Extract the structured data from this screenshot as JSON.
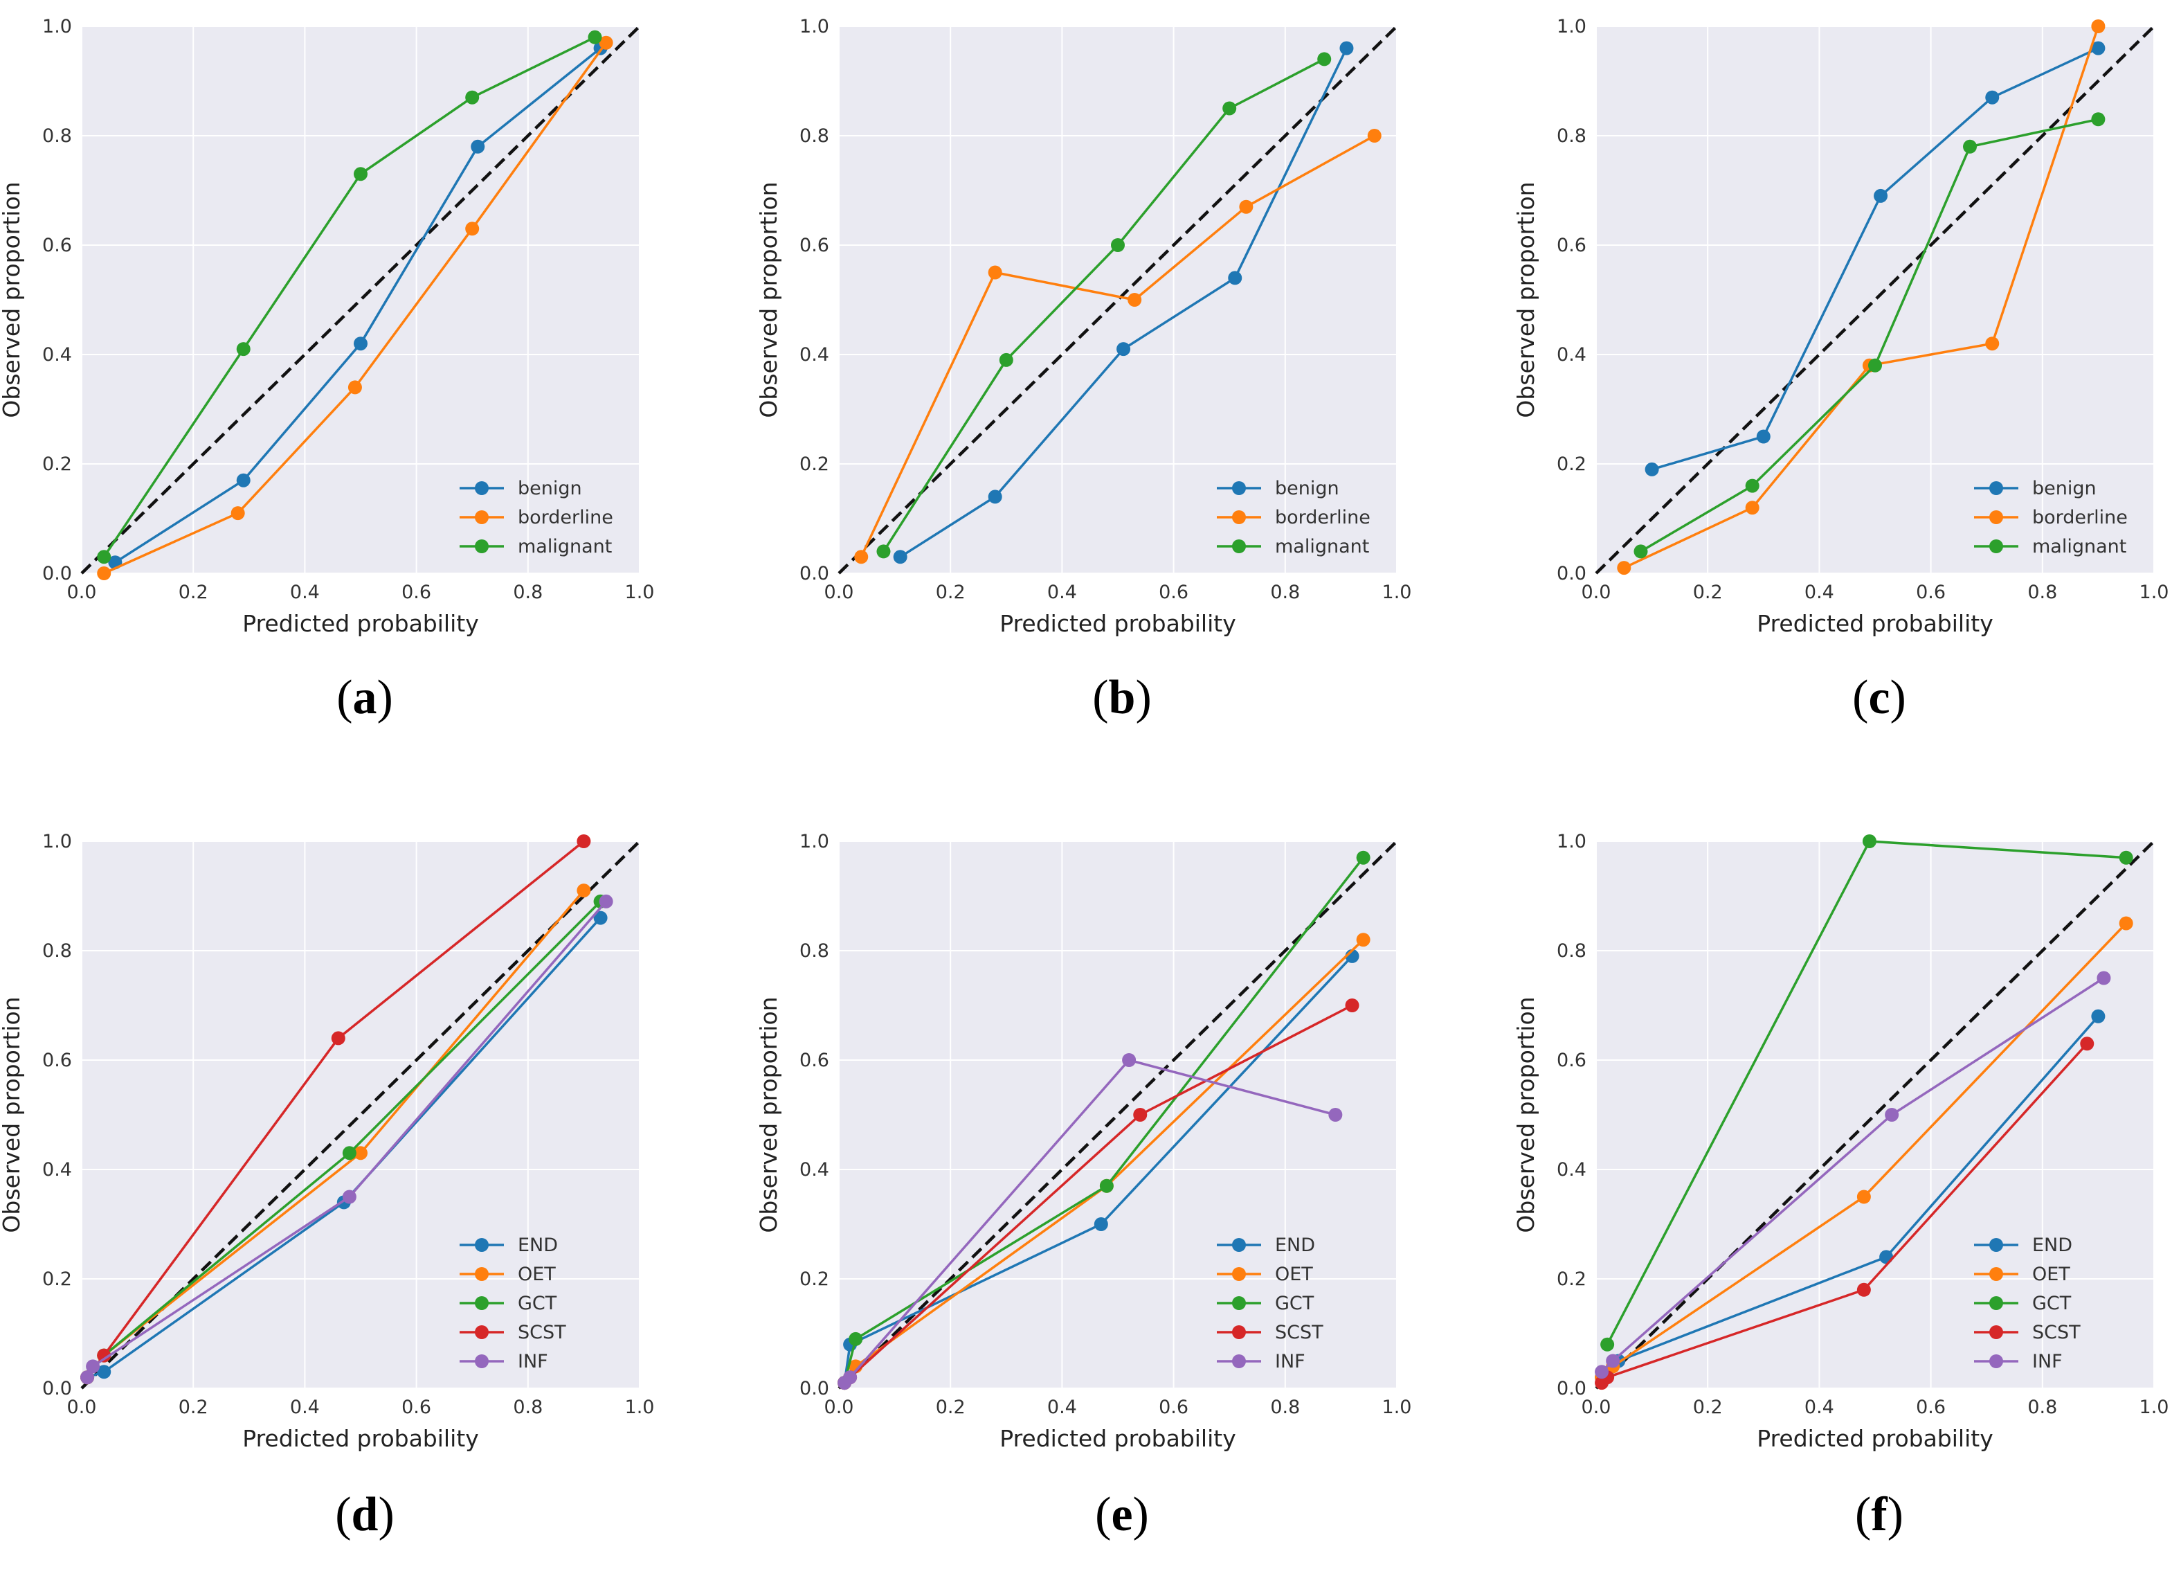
{
  "chart_data": [
    {
      "type": "line",
      "panel_label": "(a)",
      "panel_letter": "a",
      "xlabel": "Predicted probability",
      "ylabel": "Observed proportion",
      "xlim": [
        0,
        1
      ],
      "ylim": [
        0,
        1
      ],
      "xticks": [
        "0.0",
        "0.2",
        "0.4",
        "0.6",
        "0.8",
        "1.0"
      ],
      "yticks": [
        "0.0",
        "0.2",
        "0.4",
        "0.6",
        "0.8",
        "1.0"
      ],
      "reference_line": "perfect calibration (dashed diagonal)",
      "legend_position": "lower-right",
      "series": [
        {
          "name": "benign",
          "color": "#1f77b4",
          "x": [
            0.06,
            0.29,
            0.5,
            0.71,
            0.93
          ],
          "y": [
            0.02,
            0.17,
            0.42,
            0.78,
            0.96
          ]
        },
        {
          "name": "borderline",
          "color": "#ff7f0e",
          "x": [
            0.04,
            0.28,
            0.49,
            0.7,
            0.94
          ],
          "y": [
            0.0,
            0.11,
            0.34,
            0.63,
            0.97
          ]
        },
        {
          "name": "malignant",
          "color": "#2ca02c",
          "x": [
            0.04,
            0.29,
            0.5,
            0.7,
            0.92
          ],
          "y": [
            0.03,
            0.41,
            0.73,
            0.87,
            0.98
          ]
        }
      ]
    },
    {
      "type": "line",
      "panel_label": "(b)",
      "panel_letter": "b",
      "xlabel": "Predicted probability",
      "ylabel": "Observed proportion",
      "xlim": [
        0,
        1
      ],
      "ylim": [
        0,
        1
      ],
      "xticks": [
        "0.0",
        "0.2",
        "0.4",
        "0.6",
        "0.8",
        "1.0"
      ],
      "yticks": [
        "0.0",
        "0.2",
        "0.4",
        "0.6",
        "0.8",
        "1.0"
      ],
      "reference_line": "perfect calibration (dashed diagonal)",
      "legend_position": "lower-right",
      "series": [
        {
          "name": "benign",
          "color": "#1f77b4",
          "x": [
            0.11,
            0.28,
            0.51,
            0.71,
            0.91
          ],
          "y": [
            0.03,
            0.14,
            0.41,
            0.54,
            0.96
          ]
        },
        {
          "name": "borderline",
          "color": "#ff7f0e",
          "x": [
            0.04,
            0.28,
            0.53,
            0.73,
            0.96
          ],
          "y": [
            0.03,
            0.55,
            0.5,
            0.67,
            0.8
          ]
        },
        {
          "name": "malignant",
          "color": "#2ca02c",
          "x": [
            0.08,
            0.3,
            0.5,
            0.7,
            0.87
          ],
          "y": [
            0.04,
            0.39,
            0.6,
            0.85,
            0.94
          ]
        }
      ]
    },
    {
      "type": "line",
      "panel_label": "(c)",
      "panel_letter": "c",
      "xlabel": "Predicted probability",
      "ylabel": "Observed proportion",
      "xlim": [
        0,
        1
      ],
      "ylim": [
        0,
        1
      ],
      "xticks": [
        "0.0",
        "0.2",
        "0.4",
        "0.6",
        "0.8",
        "1.0"
      ],
      "yticks": [
        "0.0",
        "0.2",
        "0.4",
        "0.6",
        "0.8",
        "1.0"
      ],
      "reference_line": "perfect calibration (dashed diagonal)",
      "legend_position": "lower-right",
      "series": [
        {
          "name": "benign",
          "color": "#1f77b4",
          "x": [
            0.1,
            0.3,
            0.51,
            0.71,
            0.9
          ],
          "y": [
            0.19,
            0.25,
            0.69,
            0.87,
            0.96
          ]
        },
        {
          "name": "borderline",
          "color": "#ff7f0e",
          "x": [
            0.05,
            0.28,
            0.49,
            0.71,
            0.9
          ],
          "y": [
            0.01,
            0.12,
            0.38,
            0.42,
            1.0
          ]
        },
        {
          "name": "malignant",
          "color": "#2ca02c",
          "x": [
            0.08,
            0.28,
            0.5,
            0.67,
            0.9
          ],
          "y": [
            0.04,
            0.16,
            0.38,
            0.78,
            0.83
          ]
        }
      ]
    },
    {
      "type": "line",
      "panel_label": "(d)",
      "panel_letter": "d",
      "xlabel": "Predicted probability",
      "ylabel": "Observed proportion",
      "xlim": [
        0,
        1
      ],
      "ylim": [
        0,
        1
      ],
      "xticks": [
        "0.0",
        "0.2",
        "0.4",
        "0.6",
        "0.8",
        "1.0"
      ],
      "yticks": [
        "0.0",
        "0.2",
        "0.4",
        "0.6",
        "0.8",
        "1.0"
      ],
      "reference_line": "perfect calibration (dashed diagonal)",
      "legend_position": "lower-right",
      "series": [
        {
          "name": "END",
          "color": "#1f77b4",
          "x": [
            0.01,
            0.04,
            0.47,
            0.93
          ],
          "y": [
            0.02,
            0.03,
            0.34,
            0.86
          ]
        },
        {
          "name": "OET",
          "color": "#ff7f0e",
          "x": [
            0.01,
            0.04,
            0.5,
            0.9
          ],
          "y": [
            0.02,
            0.06,
            0.43,
            0.91
          ]
        },
        {
          "name": "GCT",
          "color": "#2ca02c",
          "x": [
            0.01,
            0.04,
            0.48,
            0.93
          ],
          "y": [
            0.02,
            0.06,
            0.43,
            0.89
          ]
        },
        {
          "name": "SCST",
          "color": "#d62728",
          "x": [
            0.01,
            0.04,
            0.46,
            0.9
          ],
          "y": [
            0.02,
            0.06,
            0.64,
            1.0
          ]
        },
        {
          "name": "INF",
          "color": "#9467bd",
          "x": [
            0.01,
            0.02,
            0.48,
            0.94
          ],
          "y": [
            0.02,
            0.04,
            0.35,
            0.89
          ]
        }
      ]
    },
    {
      "type": "line",
      "panel_label": "(e)",
      "panel_letter": "e",
      "xlabel": "Predicted probability",
      "ylabel": "Observed proportion",
      "xlim": [
        0,
        1
      ],
      "ylim": [
        0,
        1
      ],
      "xticks": [
        "0.0",
        "0.2",
        "0.4",
        "0.6",
        "0.8",
        "1.0"
      ],
      "yticks": [
        "0.0",
        "0.2",
        "0.4",
        "0.6",
        "0.8",
        "1.0"
      ],
      "reference_line": "perfect calibration (dashed diagonal)",
      "legend_position": "lower-right",
      "series": [
        {
          "name": "END",
          "color": "#1f77b4",
          "x": [
            0.01,
            0.02,
            0.47,
            0.92
          ],
          "y": [
            0.01,
            0.08,
            0.3,
            0.79
          ]
        },
        {
          "name": "OET",
          "color": "#ff7f0e",
          "x": [
            0.01,
            0.03,
            0.48,
            0.94
          ],
          "y": [
            0.01,
            0.04,
            0.37,
            0.82
          ]
        },
        {
          "name": "GCT",
          "color": "#2ca02c",
          "x": [
            0.01,
            0.03,
            0.48,
            0.94
          ],
          "y": [
            0.01,
            0.09,
            0.37,
            0.97
          ]
        },
        {
          "name": "SCST",
          "color": "#d62728",
          "x": [
            0.01,
            0.02,
            0.54,
            0.92
          ],
          "y": [
            0.01,
            0.02,
            0.5,
            0.7
          ]
        },
        {
          "name": "INF",
          "color": "#9467bd",
          "x": [
            0.01,
            0.02,
            0.52,
            0.89
          ],
          "y": [
            0.01,
            0.02,
            0.6,
            0.5
          ]
        }
      ]
    },
    {
      "type": "line",
      "panel_label": "(f)",
      "panel_letter": "f",
      "xlabel": "Predicted probability",
      "ylabel": "Observed proportion",
      "xlim": [
        0,
        1
      ],
      "ylim": [
        0,
        1
      ],
      "xticks": [
        "0.0",
        "0.2",
        "0.4",
        "0.6",
        "0.8",
        "1.0"
      ],
      "yticks": [
        "0.0",
        "0.2",
        "0.4",
        "0.6",
        "0.8",
        "1.0"
      ],
      "reference_line": "perfect calibration (dashed diagonal)",
      "legend_position": "lower-right",
      "series": [
        {
          "name": "END",
          "color": "#1f77b4",
          "x": [
            0.01,
            0.04,
            0.52,
            0.9
          ],
          "y": [
            0.02,
            0.05,
            0.24,
            0.68
          ]
        },
        {
          "name": "OET",
          "color": "#ff7f0e",
          "x": [
            0.01,
            0.03,
            0.48,
            0.95
          ],
          "y": [
            0.02,
            0.04,
            0.35,
            0.85
          ]
        },
        {
          "name": "GCT",
          "color": "#2ca02c",
          "x": [
            0.02,
            0.49,
            0.95
          ],
          "y": [
            0.08,
            1.0,
            0.97
          ]
        },
        {
          "name": "SCST",
          "color": "#d62728",
          "x": [
            0.01,
            0.02,
            0.48,
            0.88
          ],
          "y": [
            0.01,
            0.02,
            0.18,
            0.63
          ]
        },
        {
          "name": "INF",
          "color": "#9467bd",
          "x": [
            0.01,
            0.03,
            0.53,
            0.91
          ],
          "y": [
            0.03,
            0.05,
            0.5,
            0.75
          ]
        }
      ]
    }
  ]
}
